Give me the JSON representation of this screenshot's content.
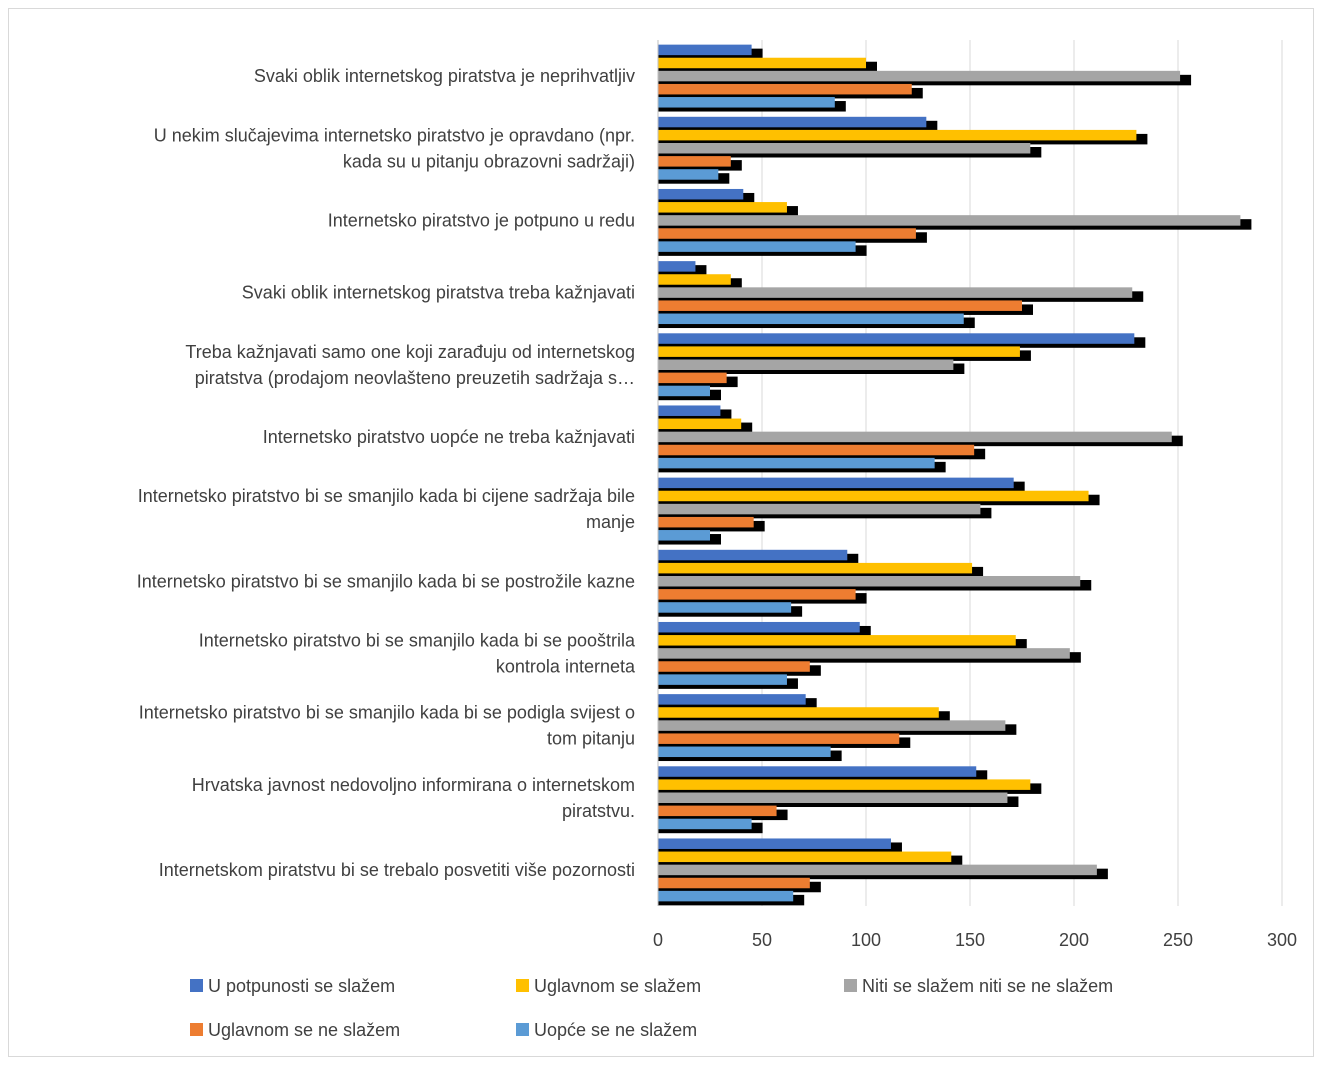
{
  "chart_data": {
    "type": "bar",
    "orientation": "horizontal",
    "categories": [
      "Svaki oblik internetskog piratstva je neprihvatljiv",
      "U nekim slučajevima internetsko piratstvo je opravdano (npr. kada su u pitanju obrazovni sadržaji)",
      "Internetsko piratstvo je potpuno u redu",
      "Svaki oblik internetskog piratstva treba kažnjavati",
      "Treba kažnjavati samo one koji zarađuju od internetskog piratstva (prodajom neovlašteno preuzetih sadržaja s…",
      "Internetsko piratstvo uopće ne treba kažnjavati",
      "Internetsko piratstvo bi se smanjilo kada bi cijene sadržaja bile manje",
      "Internetsko piratstvo bi se smanjilo kada bi se postrožile kazne",
      "Internetsko piratstvo bi se smanjilo kada bi se pooštrila kontrola interneta",
      "Internetsko piratstvo bi se smanjilo kada bi se podigla svijest o tom pitanju",
      "Hrvatska javnost nedovoljno informirana o internetskom piratstvu.",
      "Internetskom piratstvu bi se trebalo posvetiti više pozornosti"
    ],
    "category_lines": [
      [
        "Svaki oblik internetskog piratstva je neprihvatljiv"
      ],
      [
        "U nekim slučajevima internetsko piratstvo je opravdano (npr.",
        "kada su u pitanju obrazovni sadržaji)"
      ],
      [
        "Internetsko piratstvo je potpuno u redu"
      ],
      [
        "Svaki oblik internetskog piratstva treba kažnjavati"
      ],
      [
        "Treba kažnjavati samo one koji zarađuju od internetskog",
        "piratstva (prodajom neovlašteno preuzetih sadržaja s…"
      ],
      [
        "Internetsko piratstvo uopće ne treba kažnjavati"
      ],
      [
        "Internetsko piratstvo bi se smanjilo kada bi cijene sadržaja bile",
        "manje"
      ],
      [
        "Internetsko piratstvo bi se smanjilo kada bi se postrožile kazne"
      ],
      [
        "Internetsko piratstvo bi se smanjilo kada bi se pooštrila",
        "kontrola interneta"
      ],
      [
        "Internetsko piratstvo bi se smanjilo kada bi se podigla svijest o",
        "tom pitanju"
      ],
      [
        "Hrvatska javnost nedovoljno informirana o internetskom",
        "piratstvu."
      ],
      [
        "Internetskom piratstvu bi se trebalo posvetiti više pozornosti"
      ]
    ],
    "series": [
      {
        "name": "U potpunosti se slažem",
        "color": "#4472C4",
        "values": [
          45,
          129,
          41,
          18,
          229,
          30,
          171,
          91,
          97,
          71,
          153,
          112
        ]
      },
      {
        "name": "Uglavnom se slažem",
        "color": "#FFC000",
        "values": [
          100,
          230,
          62,
          35,
          174,
          40,
          207,
          151,
          172,
          135,
          179,
          141
        ]
      },
      {
        "name": "Niti se slažem niti se ne slažem",
        "color": "#A5A5A5",
        "values": [
          251,
          179,
          280,
          228,
          142,
          247,
          155,
          203,
          198,
          167,
          168,
          211
        ]
      },
      {
        "name": "Uglavnom se ne slažem",
        "color": "#ED7D31",
        "values": [
          122,
          35,
          124,
          175,
          33,
          152,
          46,
          95,
          73,
          116,
          57,
          73
        ]
      },
      {
        "name": "Uopće se ne slažem",
        "color": "#5B9BD5",
        "values": [
          85,
          29,
          95,
          147,
          25,
          133,
          25,
          64,
          62,
          83,
          45,
          65
        ]
      }
    ],
    "x_ticks": [
      0,
      50,
      100,
      150,
      200,
      250,
      300
    ],
    "xlim": [
      0,
      300
    ],
    "grid": true,
    "legend_position": "bottom",
    "title": "",
    "xlabel": "",
    "ylabel": ""
  }
}
